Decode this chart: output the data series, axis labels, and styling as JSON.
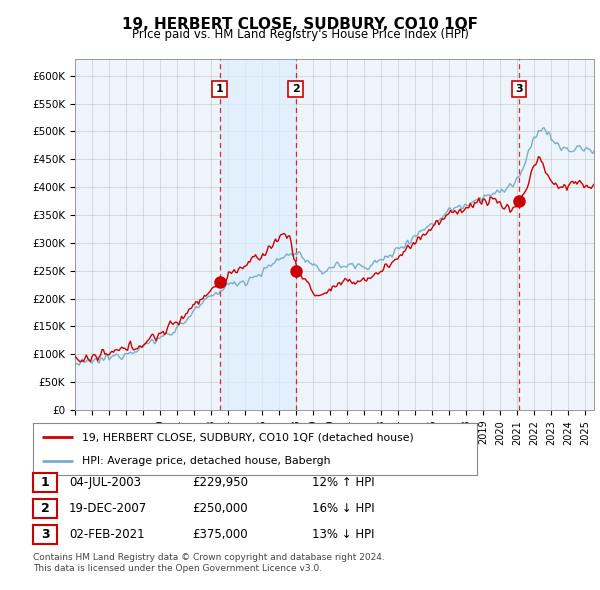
{
  "title": "19, HERBERT CLOSE, SUDBURY, CO10 1QF",
  "subtitle": "Price paid vs. HM Land Registry's House Price Index (HPI)",
  "yticks": [
    0,
    50000,
    100000,
    150000,
    200000,
    250000,
    300000,
    350000,
    400000,
    450000,
    500000,
    550000,
    600000
  ],
  "ytick_labels": [
    "£0",
    "£50K",
    "£100K",
    "£150K",
    "£200K",
    "£250K",
    "£300K",
    "£350K",
    "£400K",
    "£450K",
    "£500K",
    "£550K",
    "£600K"
  ],
  "xlim_start": 1995.0,
  "xlim_end": 2025.5,
  "ylim": [
    0,
    630000
  ],
  "sale_dates": [
    2003.5,
    2007.97,
    2021.09
  ],
  "sale_prices": [
    229950,
    250000,
    375000
  ],
  "sale_labels": [
    "1",
    "2",
    "3"
  ],
  "sale_date_strs": [
    "04-JUL-2003",
    "19-DEC-2007",
    "02-FEB-2021"
  ],
  "sale_price_strs": [
    "£229,950",
    "£250,000",
    "£375,000"
  ],
  "sale_hpi_strs": [
    "12% ↑ HPI",
    "16% ↓ HPI",
    "13% ↓ HPI"
  ],
  "red_color": "#cc0000",
  "blue_color": "#7aadcc",
  "shade_color": "#ddeeff",
  "background_color": "#eef4fb",
  "grid_color": "#cccccc",
  "legend_line1": "19, HERBERT CLOSE, SUDBURY, CO10 1QF (detached house)",
  "legend_line2": "HPI: Average price, detached house, Babergh",
  "footnote1": "Contains HM Land Registry data © Crown copyright and database right 2024.",
  "footnote2": "This data is licensed under the Open Government Licence v3.0."
}
